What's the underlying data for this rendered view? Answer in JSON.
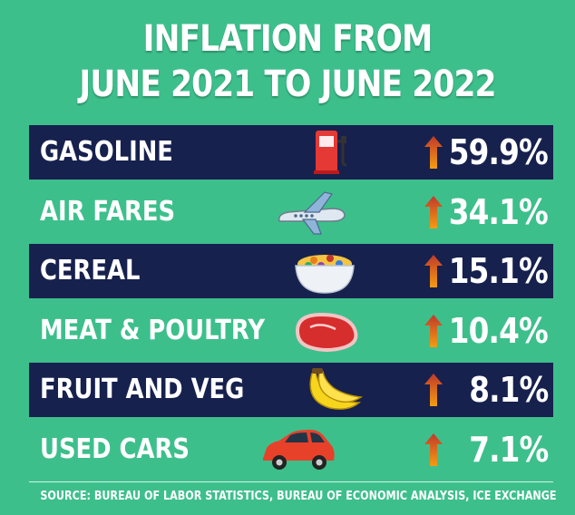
{
  "title_line1": "INFLATION FROM",
  "title_line2": "JUNE 2021 TO JUNE 2022",
  "source": "SOURCE: BUREAU OF LABOR STATISTICS, BUREAU OF ECONOMIC ANALYSIS, ICE EXCHANGE",
  "colors": {
    "background": "#3dbf8c",
    "dark_band": "#17214e",
    "arrow_top": "#c0392b",
    "arrow_bottom": "#f39c12"
  },
  "chart_data": {
    "type": "table",
    "title": "INFLATION FROM JUNE 2021 TO JUNE 2022",
    "categories": [
      "GASOLINE",
      "AIR FARES",
      "CEREAL",
      "MEAT & POULTRY",
      "FRUIT AND VEG",
      "USED CARS"
    ],
    "values": [
      59.9,
      34.1,
      15.1,
      10.4,
      8.1,
      7.1
    ],
    "value_labels": [
      "59.9%",
      "34.1%",
      "15.1%",
      "10.4%",
      "8.1%",
      "7.1%"
    ],
    "icons": [
      "fuel-pump-icon",
      "airplane-icon",
      "cereal-bowl-icon",
      "steak-icon",
      "banana-icon",
      "car-icon"
    ],
    "direction": "up"
  }
}
